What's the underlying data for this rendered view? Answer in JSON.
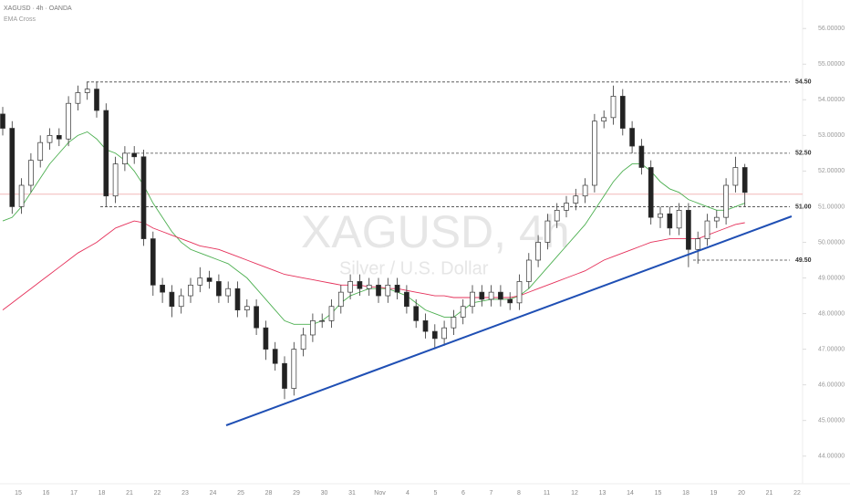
{
  "header": {
    "symbol": "XAGUSD · 4h · OANDA",
    "indicator": "EMA Cross"
  },
  "watermark": {
    "title": "XAGUSD, 4h",
    "subtitle": "Silver / U.S. Dollar"
  },
  "chart_data": {
    "type": "candlestick",
    "ylim": [
      43.25,
      56.8
    ],
    "yticks": [
      {
        "value": 56,
        "label": "56.00000"
      },
      {
        "value": 55,
        "label": "55.00000"
      },
      {
        "value": 54,
        "label": "54.00000"
      },
      {
        "value": 53,
        "label": "53.00000"
      },
      {
        "value": 52,
        "label": "52.00000"
      },
      {
        "value": 51,
        "label": "51.00000"
      },
      {
        "value": 50,
        "label": "50.00000"
      },
      {
        "value": 49,
        "label": "49.00000"
      },
      {
        "value": 48,
        "label": "48.00000"
      },
      {
        "value": 47,
        "label": "47.00000"
      },
      {
        "value": 46,
        "label": "46.00000"
      },
      {
        "value": 45,
        "label": "45.00000"
      },
      {
        "value": 44,
        "label": "44.00000"
      }
    ],
    "x_labels": [
      "15",
      "16",
      "17",
      "18",
      "21",
      "22",
      "23",
      "24",
      "25",
      "28",
      "29",
      "30",
      "31",
      "Nov",
      "4",
      "5",
      "6",
      "7",
      "8",
      "11",
      "12",
      "13",
      "14",
      "15",
      "18",
      "19",
      "20",
      "21",
      "22"
    ],
    "up_color": "#ffffff",
    "down_color": "#222222",
    "wick_color": "#333333",
    "open": [
      53.6,
      53.2,
      51.0,
      51.6,
      52.3,
      52.8,
      53.0,
      52.9,
      53.9,
      54.2,
      54.3,
      53.7,
      51.3,
      52.2,
      52.5,
      52.4,
      50.1,
      48.8,
      48.6,
      48.2,
      48.5,
      48.8,
      49.0,
      48.9,
      48.5,
      48.7,
      48.1,
      48.2,
      47.6,
      47.0,
      46.6,
      45.9,
      47.0,
      47.4,
      47.8,
      47.8,
      48.2,
      48.6,
      48.9,
      48.7,
      48.8,
      48.5,
      48.8,
      48.6,
      48.2,
      47.8,
      47.5,
      47.3,
      47.6,
      47.9,
      48.2,
      48.6,
      48.4,
      48.6,
      48.4,
      48.3,
      48.9,
      49.5,
      50.0,
      50.6,
      50.9,
      51.1,
      51.3,
      51.6,
      53.4,
      53.5,
      54.1,
      53.2,
      52.7,
      52.1,
      50.7,
      50.8,
      50.4,
      50.9,
      49.8,
      50.1,
      50.6,
      50.7,
      51.6,
      52.1
    ],
    "high": [
      53.8,
      53.4,
      51.8,
      52.5,
      53.0,
      53.2,
      53.2,
      54.1,
      54.4,
      54.5,
      54.5,
      53.9,
      52.4,
      52.7,
      52.7,
      52.6,
      50.3,
      49.0,
      48.8,
      48.7,
      49.0,
      49.3,
      49.2,
      49.1,
      48.9,
      48.9,
      48.4,
      48.4,
      47.8,
      47.2,
      46.8,
      47.2,
      47.6,
      48.0,
      48.0,
      48.4,
      48.8,
      49.1,
      49.1,
      49.0,
      49.0,
      49.0,
      49.0,
      48.8,
      48.4,
      48.0,
      47.7,
      47.8,
      48.1,
      48.4,
      48.8,
      48.8,
      48.8,
      48.8,
      48.6,
      49.1,
      49.7,
      50.2,
      50.8,
      51.1,
      51.3,
      51.5,
      51.8,
      53.6,
      53.7,
      54.4,
      54.3,
      53.4,
      52.9,
      52.3,
      51.0,
      51.0,
      51.1,
      51.1,
      50.3,
      50.8,
      50.9,
      51.8,
      52.4,
      52.2
    ],
    "low": [
      53.0,
      50.8,
      50.8,
      51.4,
      52.1,
      52.6,
      52.7,
      52.7,
      53.7,
      54.0,
      53.5,
      51.0,
      51.1,
      52.0,
      52.2,
      49.9,
      48.5,
      48.3,
      47.9,
      48.0,
      48.3,
      48.6,
      48.7,
      48.3,
      48.3,
      47.9,
      47.9,
      47.4,
      46.7,
      46.4,
      45.6,
      45.7,
      46.8,
      47.2,
      47.6,
      47.6,
      48.0,
      48.4,
      48.5,
      48.5,
      48.3,
      48.3,
      48.4,
      48.0,
      47.6,
      47.3,
      47.0,
      47.1,
      47.4,
      47.7,
      48.0,
      48.2,
      48.2,
      48.2,
      48.1,
      48.1,
      48.7,
      49.3,
      49.8,
      50.4,
      50.7,
      50.9,
      51.1,
      51.4,
      53.2,
      53.3,
      53.0,
      52.5,
      51.9,
      50.5,
      50.4,
      50.2,
      50.2,
      49.3,
      49.4,
      49.9,
      50.4,
      50.5,
      51.4,
      51.0
    ],
    "close": [
      53.2,
      51.0,
      51.6,
      52.3,
      52.8,
      53.0,
      52.9,
      53.9,
      54.2,
      54.3,
      53.7,
      51.3,
      52.2,
      52.5,
      52.4,
      50.1,
      48.8,
      48.6,
      48.2,
      48.5,
      48.8,
      49.0,
      48.9,
      48.5,
      48.7,
      48.1,
      48.2,
      47.6,
      47.0,
      46.6,
      45.9,
      47.0,
      47.4,
      47.8,
      47.8,
      48.2,
      48.6,
      48.9,
      48.7,
      48.8,
      48.5,
      48.8,
      48.6,
      48.2,
      47.8,
      47.5,
      47.3,
      47.6,
      47.9,
      48.2,
      48.6,
      48.4,
      48.6,
      48.4,
      48.3,
      48.9,
      49.5,
      50.0,
      50.6,
      50.9,
      51.1,
      51.3,
      51.6,
      53.4,
      53.5,
      54.1,
      53.2,
      52.7,
      52.1,
      50.7,
      50.8,
      50.4,
      50.9,
      49.8,
      50.1,
      50.6,
      50.7,
      51.6,
      52.1,
      51.4
    ],
    "series": [
      {
        "color": "#4caf50",
        "values": [
          50.6,
          50.7,
          51.0,
          51.4,
          51.8,
          52.2,
          52.5,
          52.8,
          53.0,
          53.1,
          52.9,
          52.6,
          52.5,
          52.3,
          52.0,
          51.6,
          51.1,
          50.7,
          50.3,
          50.0,
          49.8,
          49.7,
          49.6,
          49.5,
          49.4,
          49.2,
          49.0,
          48.7,
          48.4,
          48.1,
          47.8,
          47.7,
          47.7,
          47.7,
          47.8,
          48.0,
          48.3,
          48.5,
          48.6,
          48.7,
          48.7,
          48.7,
          48.6,
          48.5,
          48.3,
          48.1,
          48.0,
          47.9,
          47.9,
          48.1,
          48.3,
          48.35,
          48.4,
          48.4,
          48.4,
          48.5,
          48.7,
          49.0,
          49.3,
          49.6,
          49.9,
          50.2,
          50.5,
          50.9,
          51.3,
          51.7,
          52.0,
          52.2,
          52.2,
          52.0,
          51.7,
          51.5,
          51.4,
          51.2,
          51.1,
          51.0,
          50.9,
          50.9,
          51.0,
          51.1
        ]
      },
      {
        "color": "#e5305a",
        "values": [
          48.1,
          48.3,
          48.5,
          48.7,
          48.9,
          49.1,
          49.3,
          49.5,
          49.7,
          49.85,
          50.0,
          50.2,
          50.4,
          50.5,
          50.6,
          50.55,
          50.4,
          50.3,
          50.2,
          50.1,
          50.0,
          49.9,
          49.85,
          49.8,
          49.7,
          49.6,
          49.5,
          49.4,
          49.3,
          49.2,
          49.1,
          49.05,
          49.0,
          48.95,
          48.9,
          48.85,
          48.8,
          48.8,
          48.8,
          48.75,
          48.75,
          48.7,
          48.7,
          48.65,
          48.6,
          48.55,
          48.5,
          48.5,
          48.45,
          48.45,
          48.45,
          48.45,
          48.45,
          48.45,
          48.45,
          48.5,
          48.6,
          48.7,
          48.8,
          48.9,
          49.0,
          49.1,
          49.2,
          49.35,
          49.5,
          49.6,
          49.7,
          49.8,
          49.9,
          50.0,
          50.05,
          50.1,
          50.1,
          50.1,
          50.1,
          50.2,
          50.3,
          50.4,
          50.5,
          50.55
        ]
      }
    ],
    "levels": [
      {
        "value": 54.5,
        "label": "54.50"
      },
      {
        "value": 52.5,
        "label": "52.50"
      },
      {
        "value": 51,
        "label": "51.00"
      },
      {
        "value": 49.5,
        "label": "49.50"
      }
    ],
    "price_line": {
      "value": 51.35,
      "color": "#f2b8b8"
    },
    "trendline_color": "#1f4fb4"
  }
}
